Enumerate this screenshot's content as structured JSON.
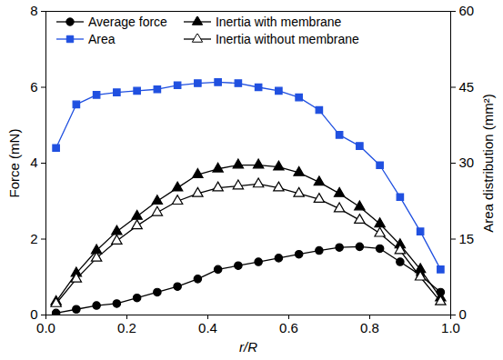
{
  "chart_data": {
    "type": "line",
    "xlabel": "r/R",
    "ylabel": "Force (mN)",
    "y2label": "Area distribution (mm²)",
    "x": [
      0.025,
      0.075,
      0.125,
      0.175,
      0.225,
      0.275,
      0.325,
      0.375,
      0.425,
      0.475,
      0.525,
      0.575,
      0.625,
      0.675,
      0.725,
      0.775,
      0.825,
      0.875,
      0.925,
      0.975
    ],
    "series": [
      {
        "name": "Average force",
        "color": "#000000",
        "marker": "circle",
        "values": [
          0.05,
          0.15,
          0.25,
          0.3,
          0.45,
          0.6,
          0.75,
          0.95,
          1.2,
          1.3,
          1.4,
          1.5,
          1.6,
          1.7,
          1.78,
          1.8,
          1.75,
          1.4,
          1.05,
          0.6
        ]
      },
      {
        "name": "Inertia with membrane",
        "color": "#000000",
        "marker": "triangle",
        "values": [
          0.35,
          1.1,
          1.7,
          2.2,
          2.6,
          3.0,
          3.35,
          3.7,
          3.85,
          3.95,
          3.95,
          3.9,
          3.75,
          3.5,
          3.2,
          2.85,
          2.4,
          1.85,
          1.2,
          0.45
        ]
      },
      {
        "name": "Area",
        "color": "#2050e0",
        "marker": "square",
        "axis": "y2",
        "values": [
          33,
          41.6,
          43.5,
          44,
          44.3,
          44.6,
          45.4,
          45.8,
          46,
          45.8,
          45,
          44.3,
          43,
          40.5,
          35.6,
          33.4,
          29.6,
          23.3,
          16.5,
          9
        ]
      },
      {
        "name": "Inertia without membrane",
        "color": "#000000",
        "marker": "triangle-open",
        "values": [
          0.3,
          0.95,
          1.5,
          1.95,
          2.35,
          2.7,
          3.0,
          3.2,
          3.35,
          3.4,
          3.45,
          3.35,
          3.2,
          3.05,
          2.8,
          2.5,
          2.15,
          1.7,
          1.0,
          0.35
        ]
      }
    ],
    "xlim": [
      0,
      1
    ],
    "xticks": [
      {
        "value": 0,
        "label": "0.0"
      },
      0.2,
      0.4,
      0.6,
      0.8,
      {
        "value": 1,
        "label": "1.0"
      }
    ],
    "ylim": [
      0,
      8
    ],
    "yticks": [
      0,
      2,
      4,
      6,
      8
    ],
    "y2lim": [
      0,
      60
    ],
    "y2ticks": [
      0,
      15,
      30,
      45,
      60
    ],
    "legend": "top-left"
  }
}
